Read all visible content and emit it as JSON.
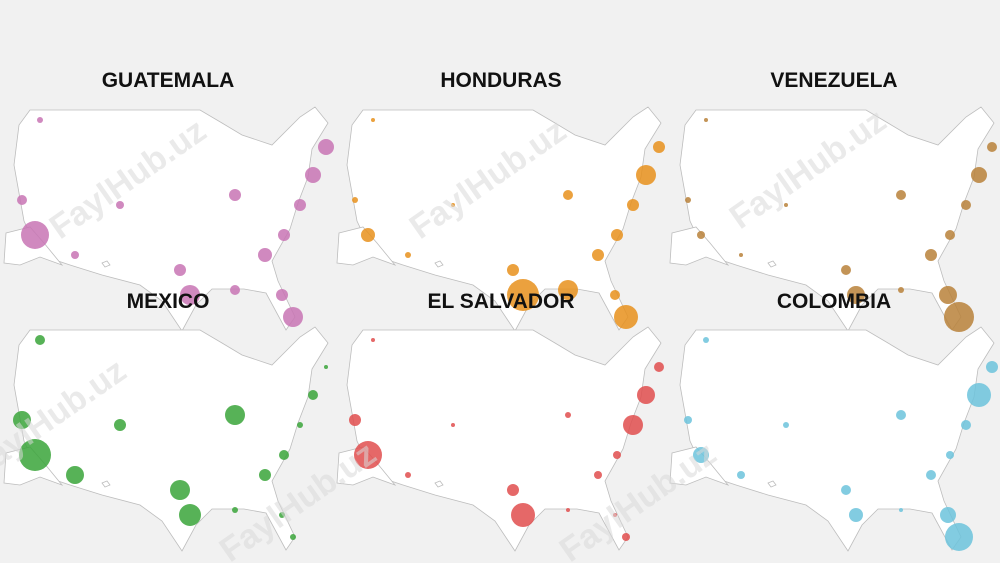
{
  "watermark": "FaylHub.uz",
  "maps": [
    {
      "title": "GUATEMALA",
      "color": "#c874b4",
      "bubble_sizes": [
        14,
        5,
        3,
        4,
        4,
        6,
        10,
        5,
        6,
        7,
        10,
        6,
        6,
        6,
        8,
        8
      ]
    },
    {
      "title": "HONDURAS",
      "color": "#e8911c",
      "bubble_sizes": [
        7,
        3,
        2,
        3,
        2,
        6,
        16,
        10,
        5,
        6,
        12,
        5,
        6,
        6,
        10,
        6
      ]
    },
    {
      "title": "VENEZUELA",
      "color": "#b8813a",
      "bubble_sizes": [
        4,
        3,
        2,
        2,
        2,
        5,
        9,
        3,
        5,
        6,
        15,
        9,
        5,
        5,
        8,
        5
      ]
    },
    {
      "title": "MEXICO",
      "color": "#3aa53a",
      "bubble_sizes": [
        16,
        9,
        5,
        9,
        6,
        10,
        11,
        3,
        10,
        6,
        3,
        3,
        5,
        3,
        5,
        2
      ]
    },
    {
      "title": "EL SALVADOR",
      "color": "#e04e4e",
      "bubble_sizes": [
        14,
        6,
        2,
        3,
        2,
        6,
        12,
        2,
        3,
        4,
        4,
        2,
        4,
        10,
        9,
        5
      ]
    },
    {
      "title": "COLOMBIA",
      "color": "#6cc3dc",
      "bubble_sizes": [
        8,
        4,
        3,
        4,
        3,
        5,
        7,
        2,
        5,
        5,
        14,
        8,
        4,
        5,
        12,
        6
      ]
    }
  ]
}
